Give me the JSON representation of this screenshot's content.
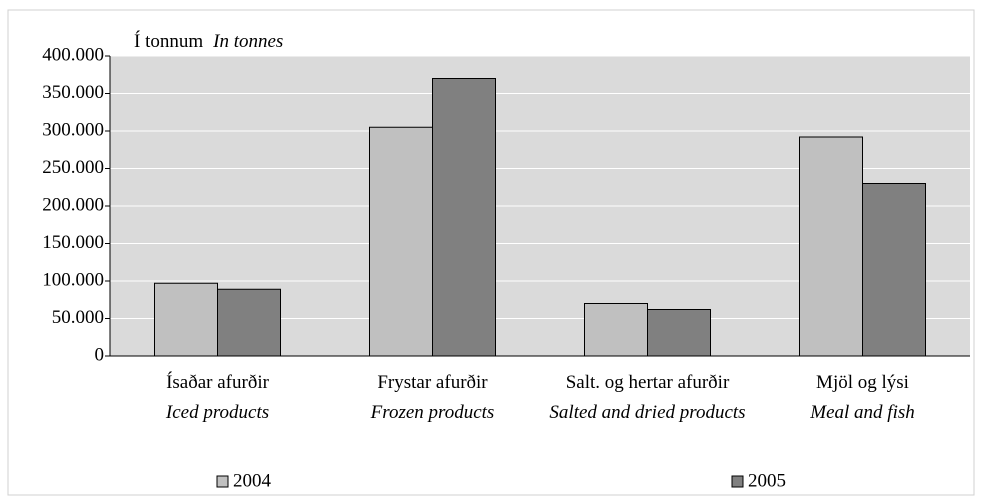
{
  "chart_data": {
    "type": "bar",
    "y_label": "Í tonnum",
    "y_label_en": "In tonnes",
    "categories": [
      "Ísaðar afurðir",
      "Frystar afurðir",
      "Salt. og hertar afurðir",
      "Mjöl og lýsi"
    ],
    "categories_en": [
      "Iced products",
      "Frozen products",
      "Salted and dried products",
      "Meal and fish"
    ],
    "series": [
      {
        "name": "2004",
        "color": "#c0c0c0",
        "values": [
          97000,
          305000,
          70000,
          292000
        ]
      },
      {
        "name": "2005",
        "color": "#808080",
        "values": [
          89000,
          370000,
          62000,
          230000
        ]
      }
    ],
    "ylim": [
      0,
      400000
    ],
    "yticks": [
      0,
      {
        "value": 50000,
        "label": "50.000"
      },
      {
        "value": 100000,
        "label": "100.000"
      },
      {
        "value": 150000,
        "label": "150.000"
      },
      {
        "value": 200000,
        "label": "200.000"
      },
      {
        "value": 250000,
        "label": "250.000"
      },
      {
        "value": 300000,
        "label": "300.000"
      },
      {
        "value": 350000,
        "label": "350.000"
      },
      {
        "value": 400000,
        "label": "400.000"
      }
    ],
    "grid": true
  }
}
